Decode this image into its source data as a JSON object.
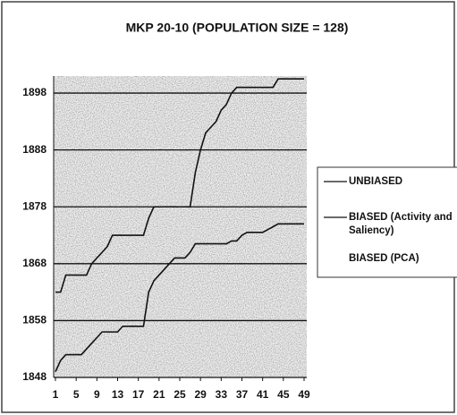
{
  "chart_data": {
    "type": "line",
    "title": "MKP 20-10 (POPULATION SIZE = 128)",
    "x": [
      1,
      2,
      3,
      4,
      5,
      6,
      7,
      8,
      9,
      10,
      11,
      12,
      13,
      14,
      15,
      16,
      17,
      18,
      19,
      20,
      21,
      22,
      23,
      24,
      25,
      26,
      27,
      28,
      29,
      30,
      31,
      32,
      33,
      34,
      35,
      36,
      37,
      38,
      39,
      40,
      41,
      42,
      43,
      44,
      45,
      46,
      47,
      48,
      49
    ],
    "xlim": [
      1,
      49
    ],
    "xticks": [
      1,
      5,
      9,
      13,
      17,
      21,
      25,
      29,
      33,
      37,
      41,
      45,
      49
    ],
    "ylim": [
      1848,
      1901
    ],
    "yticks": [
      1848,
      1858,
      1868,
      1878,
      1888,
      1898
    ],
    "grid": true,
    "series": [
      {
        "name": "UNBIASED",
        "color": "#111111",
        "values": [
          1863,
          1863,
          1866,
          1866,
          1866,
          1866,
          1866,
          1868,
          1869,
          1870,
          1871,
          1873,
          1873,
          1873,
          1873,
          1873,
          1873,
          1873,
          1876,
          1878,
          1878,
          1878,
          1878,
          1878,
          1878,
          1878,
          1878,
          1884,
          1888,
          1891,
          1892,
          1893,
          1895,
          1896,
          1898,
          1899,
          1899,
          1899,
          1899,
          1899,
          1899,
          1899,
          1899,
          1900.5,
          1900.5,
          1900.5,
          1900.5,
          1900.5,
          1900.5
        ]
      },
      {
        "name": "BIASED (Activity and Saliency)",
        "color": "#111111",
        "values": [
          1849,
          1851,
          1852,
          1852,
          1852,
          1852,
          1853,
          1854,
          1855,
          1856,
          1856,
          1856,
          1856,
          1857,
          1857,
          1857,
          1857,
          1857,
          1863,
          1865,
          1866,
          1867,
          1868,
          1869,
          1869,
          1869,
          1870,
          1871.5,
          1871.5,
          1871.5,
          1871.5,
          1871.5,
          1871.5,
          1871.5,
          1872,
          1872,
          1873,
          1873.5,
          1873.5,
          1873.5,
          1873.5,
          1874,
          1874.5,
          1875,
          1875,
          1875,
          1875,
          1875,
          1875
        ]
      },
      {
        "name": "BIASED (PCA)",
        "color": "#111111",
        "values": [
          null,
          null,
          null,
          null,
          null,
          null,
          null,
          null,
          null,
          null,
          null,
          null,
          null,
          null,
          null,
          null,
          null,
          null,
          null,
          null,
          null,
          null,
          null,
          null,
          null,
          null,
          null,
          null,
          null,
          null,
          null,
          null,
          null,
          null,
          null,
          null,
          null,
          null,
          null,
          null,
          null,
          null,
          null,
          null,
          null,
          null,
          null,
          null,
          null
        ]
      }
    ]
  }
}
